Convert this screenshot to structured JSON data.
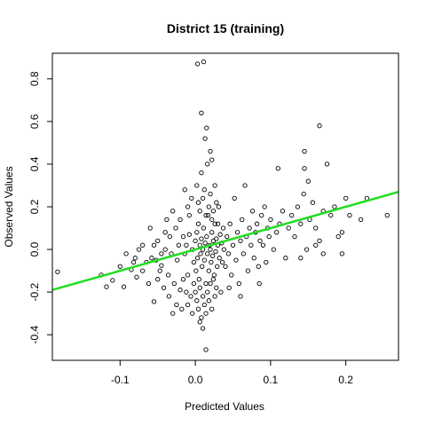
{
  "chart_data": {
    "type": "scatter",
    "title": "District 15 (training)",
    "xlabel": "Predicted Values",
    "ylabel": "Observed Values",
    "xlim": [
      -0.19,
      0.27
    ],
    "ylim": [
      -0.52,
      0.92
    ],
    "x_ticks": [
      -0.1,
      0.0,
      0.1,
      0.2
    ],
    "x_tick_labels": [
      "-0.1",
      "0.0",
      "0.1",
      "0.2"
    ],
    "y_ticks": [
      -0.4,
      -0.2,
      0.0,
      0.2,
      0.4,
      0.6,
      0.8
    ],
    "y_tick_labels": [
      "-0.4",
      "-0.2",
      "0.0",
      "0.2",
      "0.4",
      "0.6",
      "0.8"
    ],
    "grid": false,
    "legend": "none",
    "point_color": "#000000",
    "fit_line": {
      "color": "#22dd22",
      "intercept": 0.0,
      "slope": 1.0
    },
    "points": [
      [
        -0.183,
        -0.105
      ],
      [
        -0.125,
        -0.12
      ],
      [
        -0.118,
        -0.175
      ],
      [
        -0.11,
        -0.145
      ],
      [
        -0.1,
        -0.08
      ],
      [
        -0.095,
        -0.175
      ],
      [
        -0.092,
        -0.02
      ],
      [
        -0.085,
        -0.095
      ],
      [
        -0.082,
        -0.06
      ],
      [
        -0.078,
        -0.13
      ],
      [
        -0.075,
        0.0
      ],
      [
        -0.07,
        -0.1
      ],
      [
        -0.065,
        -0.06
      ],
      [
        -0.062,
        -0.16
      ],
      [
        -0.058,
        -0.04
      ],
      [
        -0.055,
        -0.245
      ],
      [
        -0.052,
        -0.05
      ],
      [
        -0.05,
        0.04
      ],
      [
        -0.047,
        -0.1
      ],
      [
        -0.045,
        -0.075
      ],
      [
        -0.042,
        -0.18
      ],
      [
        -0.04,
        0.0
      ],
      [
        -0.038,
        0.14
      ],
      [
        -0.036,
        -0.12
      ],
      [
        -0.034,
        0.06
      ],
      [
        -0.032,
        -0.02
      ],
      [
        -0.03,
        -0.3
      ],
      [
        -0.028,
        -0.16
      ],
      [
        -0.026,
        0.1
      ],
      [
        -0.024,
        -0.05
      ],
      [
        -0.022,
        0.02
      ],
      [
        -0.02,
        -0.19
      ],
      [
        -0.018,
        -0.28
      ],
      [
        -0.016,
        0.06
      ],
      [
        -0.014,
        -0.02
      ],
      [
        -0.012,
        0.02
      ],
      [
        -0.01,
        -0.12
      ],
      [
        -0.008,
        0.07
      ],
      [
        -0.006,
        -0.22
      ],
      [
        -0.004,
        0.0
      ],
      [
        -0.002,
        -0.06
      ],
      [
        0.0,
        0.04
      ],
      [
        0.001,
        -0.1
      ],
      [
        0.002,
        0.08
      ],
      [
        0.003,
        -0.04
      ],
      [
        0.004,
        0.12
      ],
      [
        0.005,
        -0.14
      ],
      [
        0.006,
        0.02
      ],
      [
        0.007,
        -0.02
      ],
      [
        0.008,
        0.05
      ],
      [
        0.009,
        -0.08
      ],
      [
        0.01,
        0.0
      ],
      [
        0.011,
        0.1
      ],
      [
        0.012,
        -0.05
      ],
      [
        0.013,
        0.03
      ],
      [
        0.014,
        -0.16
      ],
      [
        0.015,
        0.06
      ],
      [
        0.016,
        -0.02
      ],
      [
        0.017,
        0.16
      ],
      [
        0.018,
        -0.1
      ],
      [
        0.019,
        0.02
      ],
      [
        0.02,
        0.0
      ],
      [
        0.021,
        -0.06
      ],
      [
        0.022,
        0.08
      ],
      [
        0.023,
        -0.03
      ],
      [
        0.024,
        0.04
      ],
      [
        0.025,
        -0.12
      ],
      [
        0.026,
        0.12
      ],
      [
        0.027,
        -0.01
      ],
      [
        0.028,
        0.05
      ],
      [
        0.029,
        -0.08
      ],
      [
        0.03,
        0.02
      ],
      [
        0.031,
        0.2
      ],
      [
        0.032,
        -0.04
      ],
      [
        0.033,
        0.07
      ],
      [
        0.034,
        -0.2
      ],
      [
        0.035,
        0.03
      ],
      [
        0.036,
        -0.06
      ],
      [
        0.037,
        0.1
      ],
      [
        0.038,
        0.0
      ],
      [
        0.002,
        0.3
      ],
      [
        0.004,
        0.22
      ],
      [
        0.006,
        0.18
      ],
      [
        0.008,
        0.36
      ],
      [
        0.01,
        0.24
      ],
      [
        0.012,
        0.28
      ],
      [
        0.014,
        0.16
      ],
      [
        0.016,
        0.4
      ],
      [
        0.018,
        0.2
      ],
      [
        0.02,
        0.26
      ],
      [
        0.022,
        0.14
      ],
      [
        0.024,
        0.18
      ],
      [
        0.026,
        0.3
      ],
      [
        0.028,
        0.22
      ],
      [
        0.03,
        0.12
      ],
      [
        0.0,
        -0.2
      ],
      [
        0.002,
        -0.24
      ],
      [
        0.004,
        -0.28
      ],
      [
        0.006,
        -0.18
      ],
      [
        0.008,
        -0.32
      ],
      [
        0.01,
        -0.22
      ],
      [
        0.012,
        -0.26
      ],
      [
        0.014,
        -0.3
      ],
      [
        0.016,
        -0.2
      ],
      [
        0.018,
        -0.24
      ],
      [
        0.02,
        -0.16
      ],
      [
        0.022,
        -0.28
      ],
      [
        0.024,
        -0.14
      ],
      [
        0.026,
        -0.22
      ],
      [
        0.028,
        -0.18
      ],
      [
        -0.01,
        0.2
      ],
      [
        -0.014,
        0.28
      ],
      [
        -0.02,
        0.14
      ],
      [
        -0.005,
        0.24
      ],
      [
        -0.008,
        0.16
      ],
      [
        -0.01,
        -0.26
      ],
      [
        -0.004,
        -0.3
      ],
      [
        -0.012,
        -0.2
      ],
      [
        -0.002,
        -0.16
      ],
      [
        -0.016,
        -0.14
      ],
      [
        0.04,
        -0.08
      ],
      [
        0.042,
        0.06
      ],
      [
        0.044,
        -0.02
      ],
      [
        0.046,
        0.12
      ],
      [
        0.048,
        -0.12
      ],
      [
        0.05,
        0.02
      ],
      [
        0.052,
        0.24
      ],
      [
        0.054,
        -0.05
      ],
      [
        0.056,
        0.08
      ],
      [
        0.058,
        -0.16
      ],
      [
        0.06,
        0.04
      ],
      [
        0.062,
        0.14
      ],
      [
        0.064,
        -0.02
      ],
      [
        0.066,
        0.3
      ],
      [
        0.068,
        0.06
      ],
      [
        0.07,
        -0.1
      ],
      [
        0.072,
        0.1
      ],
      [
        0.074,
        0.02
      ],
      [
        0.076,
        0.18
      ],
      [
        0.078,
        -0.04
      ],
      [
        0.08,
        0.08
      ],
      [
        0.082,
        0.12
      ],
      [
        0.084,
        -0.08
      ],
      [
        0.086,
        0.04
      ],
      [
        0.088,
        0.16
      ],
      [
        0.09,
        0.02
      ],
      [
        0.092,
        0.2
      ],
      [
        0.094,
        -0.06
      ],
      [
        0.096,
        0.1
      ],
      [
        0.098,
        0.06
      ],
      [
        0.1,
        0.14
      ],
      [
        0.104,
        0.0
      ],
      [
        0.108,
        0.08
      ],
      [
        0.112,
        0.12
      ],
      [
        0.116,
        0.18
      ],
      [
        0.12,
        -0.04
      ],
      [
        0.124,
        0.1
      ],
      [
        0.128,
        0.16
      ],
      [
        0.132,
        0.06
      ],
      [
        0.136,
        0.2
      ],
      [
        0.14,
        0.12
      ],
      [
        0.144,
        0.26
      ],
      [
        0.148,
        0.0
      ],
      [
        0.152,
        0.14
      ],
      [
        0.156,
        0.22
      ],
      [
        0.16,
        0.1
      ],
      [
        0.165,
        0.04
      ],
      [
        0.17,
        0.18
      ],
      [
        0.175,
        0.4
      ],
      [
        0.18,
        0.16
      ],
      [
        0.11,
        0.38
      ],
      [
        0.145,
        0.46
      ],
      [
        0.145,
        0.38
      ],
      [
        0.165,
        0.58
      ],
      [
        0.15,
        0.32
      ],
      [
        0.14,
        -0.04
      ],
      [
        0.16,
        0.02
      ],
      [
        0.17,
        -0.02
      ],
      [
        0.185,
        0.2
      ],
      [
        0.19,
        0.06
      ],
      [
        0.195,
        -0.02
      ],
      [
        0.2,
        0.24
      ],
      [
        0.205,
        0.16
      ],
      [
        0.22,
        0.14
      ],
      [
        0.228,
        0.24
      ],
      [
        0.255,
        0.16
      ],
      [
        0.195,
        0.08
      ],
      [
        0.085,
        -0.16
      ],
      [
        0.06,
        -0.22
      ],
      [
        0.045,
        -0.18
      ],
      [
        -0.03,
        0.18
      ],
      [
        -0.04,
        0.08
      ],
      [
        -0.06,
        0.1
      ],
      [
        -0.07,
        0.02
      ],
      [
        -0.08,
        -0.04
      ],
      [
        -0.05,
        -0.14
      ],
      [
        -0.035,
        -0.22
      ],
      [
        -0.025,
        -0.26
      ],
      [
        -0.045,
        -0.02
      ],
      [
        -0.055,
        0.02
      ],
      [
        0.003,
        0.87
      ],
      [
        0.011,
        0.88
      ],
      [
        0.008,
        0.64
      ],
      [
        0.015,
        0.57
      ],
      [
        0.013,
        0.52
      ],
      [
        0.02,
        0.46
      ],
      [
        0.022,
        0.42
      ],
      [
        0.01,
        -0.37
      ],
      [
        0.014,
        -0.47
      ],
      [
        0.006,
        -0.34
      ]
    ]
  }
}
